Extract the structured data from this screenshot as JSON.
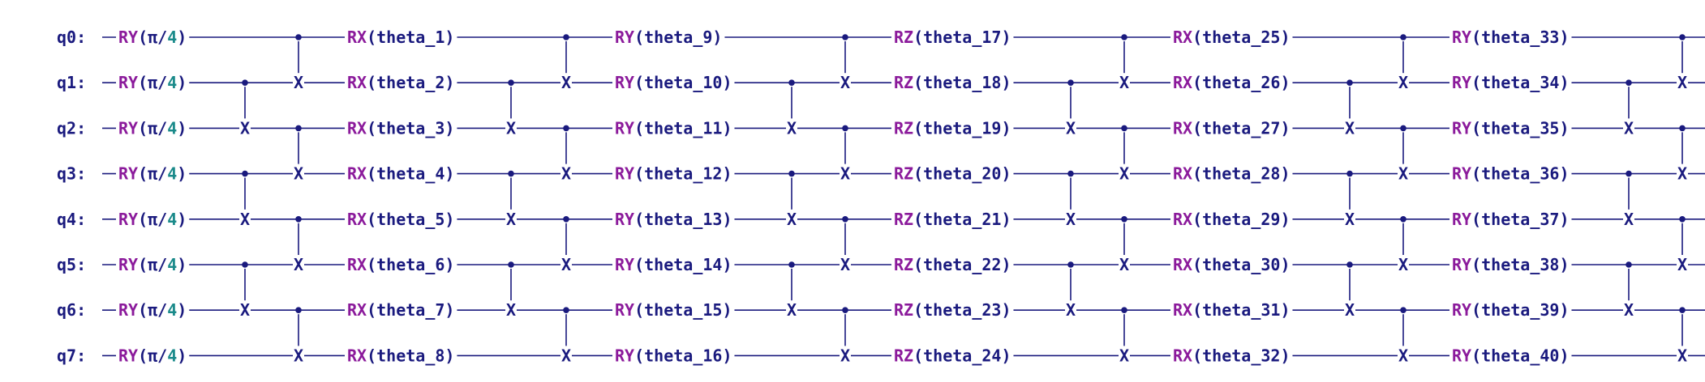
{
  "colors": {
    "wire": "#1a1a7e",
    "gate_name": "#8b1a9b",
    "parameter": "#1a1a7e",
    "number": "#1a8a8a"
  },
  "qubits": [
    "q0:",
    "q1:",
    "q2:",
    "q3:",
    "q4:",
    "q5:",
    "q6:",
    "q7:"
  ],
  "layer0": {
    "gate": "RY",
    "open": "(",
    "pi": "π/",
    "num": "4",
    "close": ")"
  },
  "blocks": [
    {
      "gate": "RX",
      "params": [
        "theta_1",
        "theta_2",
        "theta_3",
        "theta_4",
        "theta_5",
        "theta_6",
        "theta_7",
        "theta_8"
      ]
    },
    {
      "gate": "RY",
      "params": [
        "theta_9",
        "theta_10",
        "theta_11",
        "theta_12",
        "theta_13",
        "theta_14",
        "theta_15",
        "theta_16"
      ]
    },
    {
      "gate": "RZ",
      "params": [
        "theta_17",
        "theta_18",
        "theta_19",
        "theta_20",
        "theta_21",
        "theta_22",
        "theta_23",
        "theta_24"
      ]
    },
    {
      "gate": "RX",
      "params": [
        "theta_25",
        "theta_26",
        "theta_27",
        "theta_28",
        "theta_29",
        "theta_30",
        "theta_31",
        "theta_32"
      ]
    },
    {
      "gate": "RY",
      "params": [
        "theta_33",
        "theta_34",
        "theta_35",
        "theta_36",
        "theta_37",
        "theta_38",
        "theta_39",
        "theta_40"
      ]
    }
  ],
  "entangler": {
    "even_pairs": [
      [
        1,
        2
      ],
      [
        3,
        4
      ],
      [
        5,
        6
      ]
    ],
    "odd_pairs": [
      [
        0,
        1
      ],
      [
        2,
        3
      ],
      [
        4,
        5
      ],
      [
        6,
        7
      ]
    ],
    "control_symbol": "•",
    "target_symbol": "X"
  }
}
